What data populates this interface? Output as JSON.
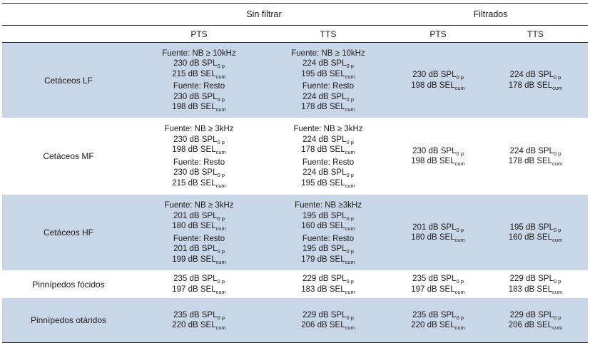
{
  "headers": {
    "group1": "Sin filtrar",
    "group2": "Filtrados",
    "sub": [
      "PTS",
      "TTS",
      "PTS",
      "TTS"
    ]
  },
  "units": {
    "spl": "dB SPL",
    "spl_sub": "0 p",
    "sel": "dB SEL",
    "sel_sub": "cum"
  },
  "rows": [
    {
      "group": "Cetáceos LF",
      "cells": [
        [
          {
            "src": "Fuente: NB ≥ 10kHz",
            "spl": "230",
            "sel": "215"
          },
          {
            "src": "Fuente: Resto",
            "spl": "230",
            "sel": "198"
          }
        ],
        [
          {
            "src": "Fuente: NB ≥ 10kHz",
            "spl": "224",
            "sel": "195"
          },
          {
            "src": "Fuente: Resto",
            "spl": "224",
            "sel": "178"
          }
        ],
        [
          {
            "src": "",
            "spl": "230",
            "sel": "198"
          }
        ],
        [
          {
            "src": "",
            "spl": "224",
            "sel": "178"
          }
        ]
      ]
    },
    {
      "group": "Cetáceos MF",
      "cells": [
        [
          {
            "src": "Fuente: NB ≥ 3kHz",
            "spl": "230",
            "sel": "198"
          },
          {
            "src": "Fuente: Resto",
            "spl": "230",
            "sel": "215"
          }
        ],
        [
          {
            "src": "Fuente: NB ≥ 3kHz",
            "spl": "224",
            "sel": "178"
          },
          {
            "src": "Fuente: Resto",
            "spl": "224",
            "sel": "195"
          }
        ],
        [
          {
            "src": "",
            "spl": "230",
            "sel": "198"
          }
        ],
        [
          {
            "src": "",
            "spl": "224",
            "sel": "178"
          }
        ]
      ]
    },
    {
      "group": "Cetáceos HF",
      "cells": [
        [
          {
            "src": "Fuente: NB ≥ 3kHz",
            "spl": "201",
            "sel": "180"
          },
          {
            "src": "Fuente: Resto",
            "spl": "201",
            "sel": "199"
          }
        ],
        [
          {
            "src": "Fuente: NB ≥3kHz",
            "spl": "195",
            "sel": "160"
          },
          {
            "src": "Fuente: Resto",
            "spl": "195",
            "sel": "179"
          }
        ],
        [
          {
            "src": "",
            "spl": "201",
            "sel": "180"
          }
        ],
        [
          {
            "src": "",
            "spl": "195",
            "sel": "160"
          }
        ]
      ]
    },
    {
      "group": "Pinnípedos fócidos",
      "cells": [
        [
          {
            "src": "",
            "spl": "235",
            "sel": "197"
          }
        ],
        [
          {
            "src": "",
            "spl": "229",
            "sel": "183"
          }
        ],
        [
          {
            "src": "",
            "spl": "235",
            "sel": "197"
          }
        ],
        [
          {
            "src": "",
            "spl": "229",
            "sel": "183"
          }
        ]
      ]
    },
    {
      "group": "Pinnípedos otáridos",
      "cells": [
        [
          {
            "src": "",
            "spl": "235",
            "sel": "220"
          }
        ],
        [
          {
            "src": "",
            "spl": "229",
            "sel": "206"
          }
        ],
        [
          {
            "src": "",
            "spl": "235",
            "sel": "220"
          }
        ],
        [
          {
            "src": "",
            "spl": "229",
            "sel": "206"
          }
        ]
      ]
    }
  ]
}
